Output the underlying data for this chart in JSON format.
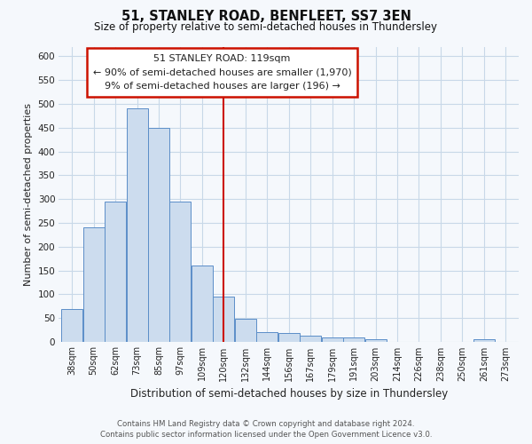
{
  "title": "51, STANLEY ROAD, BENFLEET, SS7 3EN",
  "subtitle": "Size of property relative to semi-detached houses in Thundersley",
  "xlabel": "Distribution of semi-detached houses by size in Thundersley",
  "ylabel": "Number of semi-detached properties",
  "footer1": "Contains HM Land Registry data © Crown copyright and database right 2024.",
  "footer2": "Contains public sector information licensed under the Open Government Licence v3.0.",
  "categories": [
    "38sqm",
    "50sqm",
    "62sqm",
    "73sqm",
    "85sqm",
    "97sqm",
    "109sqm",
    "120sqm",
    "132sqm",
    "144sqm",
    "156sqm",
    "167sqm",
    "179sqm",
    "191sqm",
    "203sqm",
    "214sqm",
    "226sqm",
    "238sqm",
    "250sqm",
    "261sqm",
    "273sqm"
  ],
  "values": [
    70,
    240,
    295,
    490,
    450,
    295,
    160,
    95,
    48,
    20,
    18,
    14,
    9,
    9,
    5,
    0,
    0,
    0,
    0,
    5,
    0
  ],
  "bar_color": "#ccdcee",
  "bar_edge_color": "#5b8ec8",
  "background_color": "#f5f8fc",
  "grid_color": "#c8d8e8",
  "annotation_line1": "51 STANLEY ROAD: 119sqm",
  "annotation_line2": "← 90% of semi-detached houses are smaller (1,970)",
  "annotation_line3": "9% of semi-detached houses are larger (196) →",
  "vline_color": "#cc1100",
  "annotation_box_facecolor": "#ffffff",
  "annotation_box_edgecolor": "#cc1100",
  "ylim_max": 620,
  "yticks": [
    0,
    50,
    100,
    150,
    200,
    250,
    300,
    350,
    400,
    450,
    500,
    550,
    600
  ],
  "vline_pos": 7.0
}
